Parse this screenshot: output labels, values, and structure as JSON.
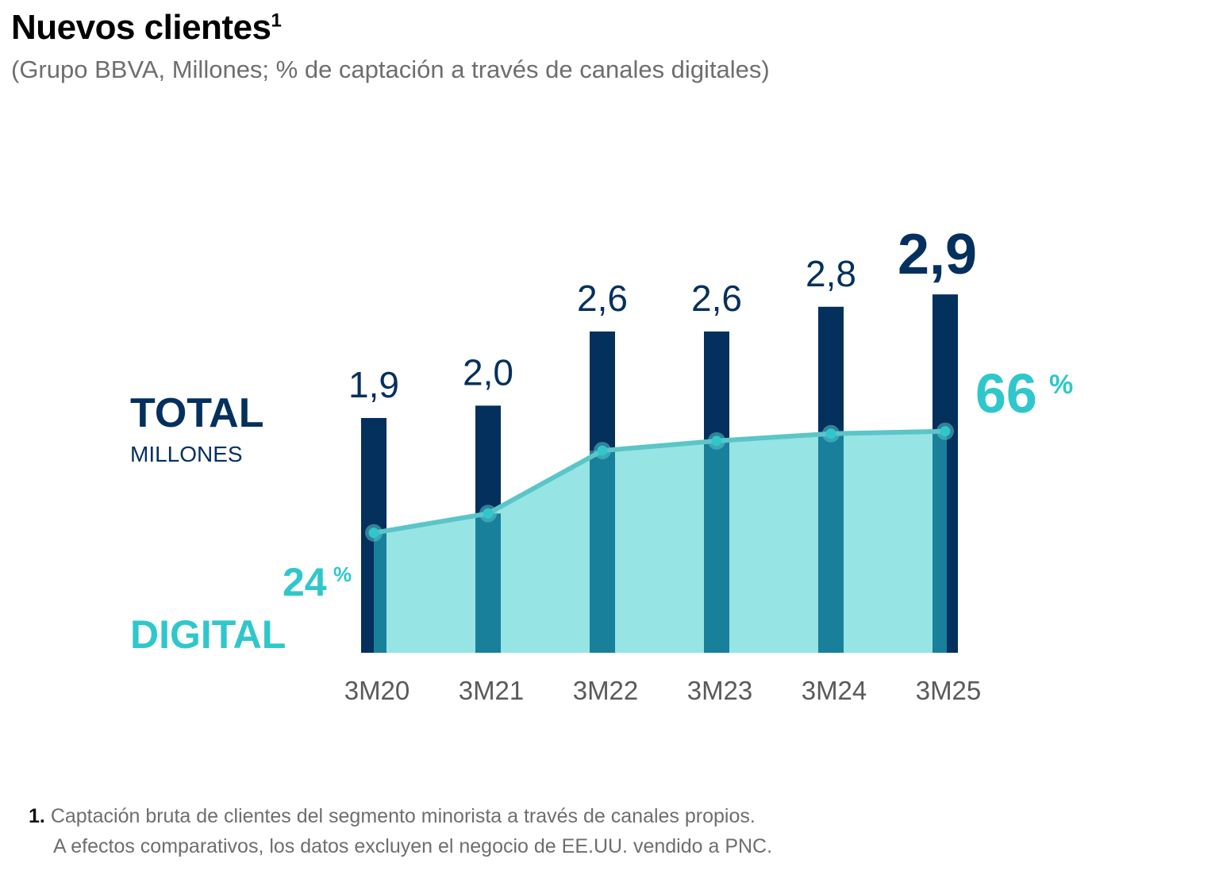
{
  "title": "Nuevos clientes",
  "title_footnote_marker": "1",
  "subtitle": "(Grupo BBVA, Millones; % de captación a través de canales digitales)",
  "colors": {
    "bar": "#04305e",
    "bar_overlap": "#19809b",
    "area_fill": "#97e4e4",
    "line": "#5bc5c8",
    "point": "#2fc7cc",
    "digital_text": "#2fc7cc",
    "category_text": "#5a5a5a"
  },
  "chart_data": {
    "type": "bar",
    "categories": [
      "3M20",
      "3M21",
      "3M22",
      "3M23",
      "3M24",
      "3M25"
    ],
    "series": [
      {
        "name": "TOTAL",
        "unit_label": "MILLONES",
        "values": [
          1.9,
          2.0,
          2.6,
          2.6,
          2.8,
          2.9
        ],
        "labels": [
          "1,9",
          "2,0",
          "2,6",
          "2,6",
          "2,8",
          "2,9"
        ]
      },
      {
        "name": "DIGITAL",
        "type": "area",
        "unit": "%",
        "values": [
          24,
          32,
          58,
          62,
          65,
          66
        ]
      }
    ],
    "endpoint_labels": {
      "first": "24",
      "last": "66",
      "unit": "%"
    }
  },
  "footnote": {
    "number": "1.",
    "line1": "Captación bruta de clientes del segmento minorista a través de canales propios.",
    "line2": "A efectos comparativos, los datos excluyen el negocio de EE.UU. vendido a PNC."
  }
}
